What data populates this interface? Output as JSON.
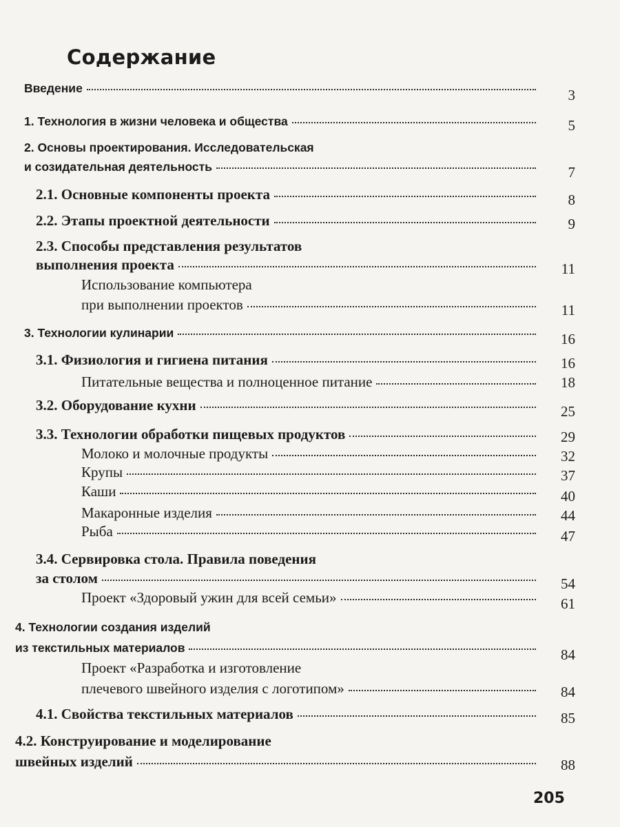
{
  "title": "Содержание",
  "entries": [
    {
      "lines": [
        "Введение"
      ],
      "page": "3"
    },
    {
      "lines": [
        "1. Технология в жизни человека и общества"
      ],
      "page": "5"
    },
    {
      "lines": [
        "2. Основы проектирования. Исследовательская",
        "и созидательная деятельность"
      ],
      "page": "7"
    },
    {
      "lines": [
        "2.1. Основные компоненты проекта"
      ],
      "page": "8"
    },
    {
      "lines": [
        "2.2. Этапы проектной деятельности"
      ],
      "page": "9"
    },
    {
      "lines": [
        "2.3. Способы представления результатов",
        "выполнения проекта"
      ],
      "page": "11"
    },
    {
      "lines": [
        "Использование компьютера",
        "при выполнении проектов"
      ],
      "page": "11"
    },
    {
      "lines": [
        "3. Технологии кулинарии"
      ],
      "page": "16"
    },
    {
      "lines": [
        "3.1. Физиология и гигиена питания"
      ],
      "page": "16"
    },
    {
      "lines": [
        "Питательные вещества и полноценное питание"
      ],
      "page": "18"
    },
    {
      "lines": [
        "3.2. Оборудование кухни"
      ],
      "page": "25"
    },
    {
      "lines": [
        "3.3. Технологии обработки пищевых продуктов"
      ],
      "page": "29"
    },
    {
      "lines": [
        "Молоко и молочные продукты"
      ],
      "page": "32"
    },
    {
      "lines": [
        "Крупы"
      ],
      "page": "37"
    },
    {
      "lines": [
        "Каши"
      ],
      "page": "40"
    },
    {
      "lines": [
        "Макаронные изделия"
      ],
      "page": "44"
    },
    {
      "lines": [
        "Рыба"
      ],
      "page": "47"
    },
    {
      "lines": [
        "3.4. Сервировка стола. Правила поведения",
        "за столом"
      ],
      "page": "54"
    },
    {
      "lines": [
        "Проект «Здоровый ужин для всей семьи»"
      ],
      "page": "61"
    },
    {
      "lines": [
        "4. Технологии создания изделий",
        "из текстильных материалов"
      ],
      "page": "84"
    },
    {
      "lines": [
        "Проект «Разработка и изготовление",
        "плечевого швейного изделия с логотипом»"
      ],
      "page": "84"
    },
    {
      "lines": [
        "4.1. Свойства текстильных материалов"
      ],
      "page": "85"
    },
    {
      "lines": [
        "4.2. Конструирование и моделирование",
        "швейных изделий"
      ],
      "page": "88"
    }
  ],
  "folio": "205"
}
